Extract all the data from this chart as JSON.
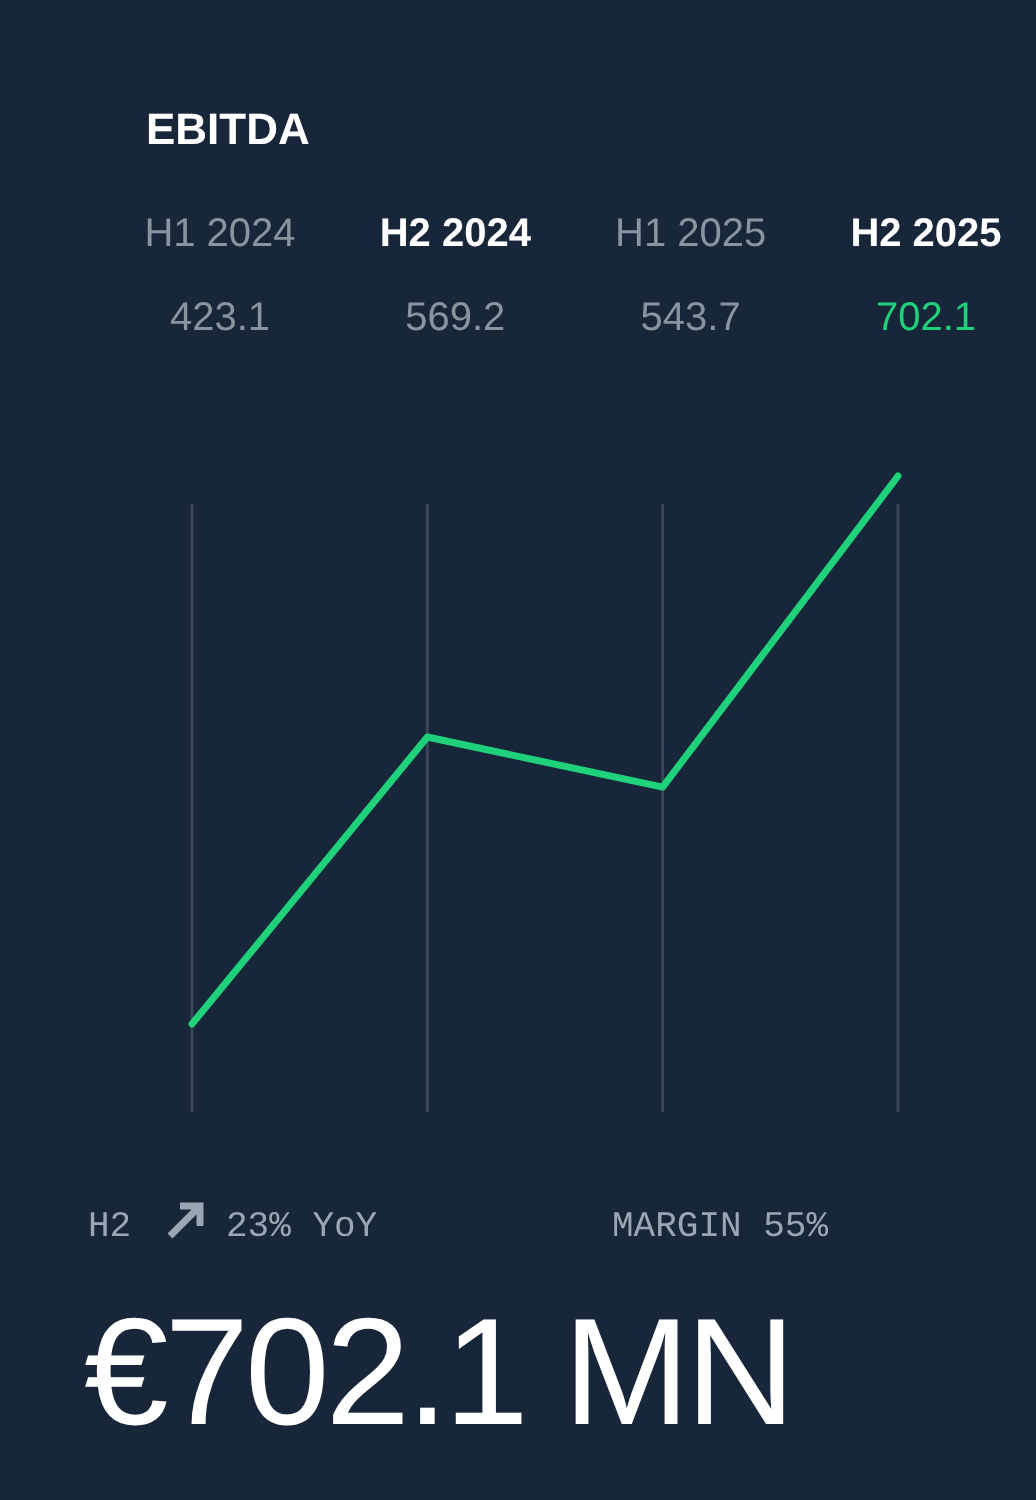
{
  "chart_data": {
    "type": "line",
    "title": "EBITDA",
    "categories": [
      "H1 2024",
      "H2 2024",
      "H1 2025",
      "H2 2025"
    ],
    "series": [
      {
        "color": "#1fd17a",
        "values": [
          423.1,
          569.2,
          543.7,
          702.1
        ]
      }
    ],
    "data_labels": true,
    "grid": "x",
    "marker": "none",
    "line_style": "solid",
    "annotations": [
      "H2",
      "23% YoY",
      "MARGIN 55%",
      "€702.1 MN"
    ]
  }
}
